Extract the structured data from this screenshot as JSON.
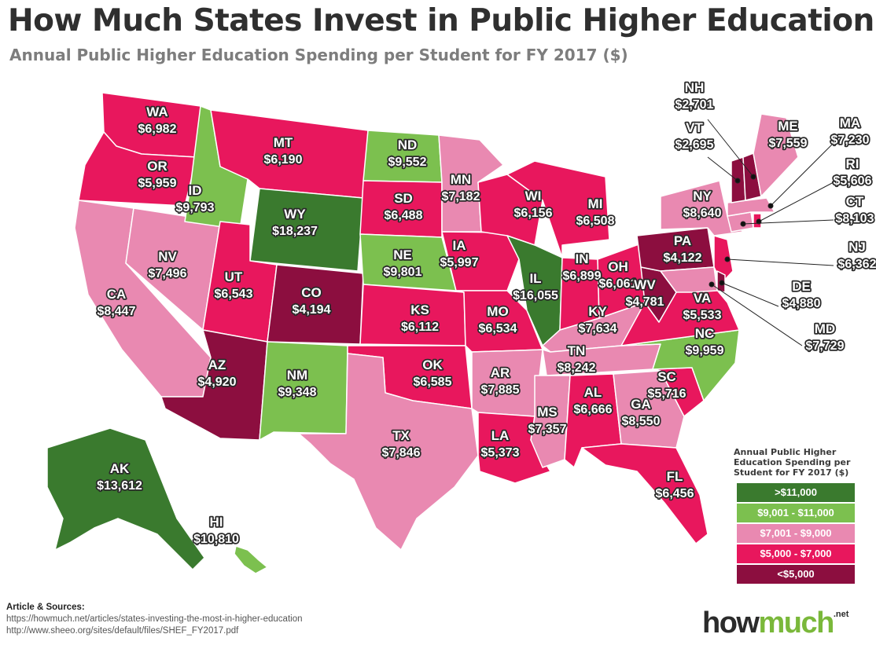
{
  "title": "How Much States Invest in Public Higher Education",
  "subtitle": "Annual Public Higher Education Spending per Student for FY 2017 ($)",
  "colors": {
    "gt11000": "#3a7a2e",
    "r9001_11000": "#7cc04f",
    "r7001_9000": "#e989b1",
    "r5000_7000": "#e8175d",
    "lt5000": "#8c0e3f"
  },
  "legend": {
    "title": "Annual Public Higher Education Spending per Student for FY 2017 ($)",
    "items": [
      {
        "label": ">$11,000",
        "color": "#3a7a2e"
      },
      {
        "label": "$9,001 - $11,000",
        "color": "#7cc04f"
      },
      {
        "label": "$7,001 - $9,000",
        "color": "#e989b1"
      },
      {
        "label": "$5,000 - $7,000",
        "color": "#e8175d"
      },
      {
        "label": "<$5,000",
        "color": "#8c0e3f"
      }
    ]
  },
  "states": [
    {
      "abbr": "WA",
      "value": "$6,982"
    },
    {
      "abbr": "OR",
      "value": "$5,959"
    },
    {
      "abbr": "CA",
      "value": "$8,447"
    },
    {
      "abbr": "NV",
      "value": "$7,496"
    },
    {
      "abbr": "ID",
      "value": "$9,793"
    },
    {
      "abbr": "MT",
      "value": "$6,190"
    },
    {
      "abbr": "WY",
      "value": "$18,237"
    },
    {
      "abbr": "UT",
      "value": "$6,543"
    },
    {
      "abbr": "AZ",
      "value": "$4,920"
    },
    {
      "abbr": "CO",
      "value": "$4,194"
    },
    {
      "abbr": "NM",
      "value": "$9,348"
    },
    {
      "abbr": "ND",
      "value": "$9,552"
    },
    {
      "abbr": "SD",
      "value": "$6,488"
    },
    {
      "abbr": "NE",
      "value": "$9,801"
    },
    {
      "abbr": "KS",
      "value": "$6,112"
    },
    {
      "abbr": "OK",
      "value": "$6,585"
    },
    {
      "abbr": "TX",
      "value": "$7,846"
    },
    {
      "abbr": "MN",
      "value": "$7,182"
    },
    {
      "abbr": "IA",
      "value": "$5,997"
    },
    {
      "abbr": "MO",
      "value": "$6,534"
    },
    {
      "abbr": "AR",
      "value": "$7,885"
    },
    {
      "abbr": "LA",
      "value": "$5,373"
    },
    {
      "abbr": "WI",
      "value": "$6,156"
    },
    {
      "abbr": "IL",
      "value": "$16,055"
    },
    {
      "abbr": "MI",
      "value": "$6,508"
    },
    {
      "abbr": "IN",
      "value": "$6,899"
    },
    {
      "abbr": "OH",
      "value": "$6,061"
    },
    {
      "abbr": "KY",
      "value": "$7,634"
    },
    {
      "abbr": "TN",
      "value": "$8,242"
    },
    {
      "abbr": "MS",
      "value": "$7,357"
    },
    {
      "abbr": "AL",
      "value": "$6,666"
    },
    {
      "abbr": "GA",
      "value": "$8,550"
    },
    {
      "abbr": "FL",
      "value": "$6,456"
    },
    {
      "abbr": "SC",
      "value": "$5,716"
    },
    {
      "abbr": "NC",
      "value": "$9,959"
    },
    {
      "abbr": "VA",
      "value": "$5,533"
    },
    {
      "abbr": "WV",
      "value": "$4,781"
    },
    {
      "abbr": "PA",
      "value": "$4,122"
    },
    {
      "abbr": "NY",
      "value": "$8,640"
    },
    {
      "abbr": "ME",
      "value": "$7,559"
    },
    {
      "abbr": "NH",
      "value": "$2,701"
    },
    {
      "abbr": "VT",
      "value": "$2,695"
    },
    {
      "abbr": "MA",
      "value": "$7,230"
    },
    {
      "abbr": "RI",
      "value": "$5,606"
    },
    {
      "abbr": "CT",
      "value": "$8,103"
    },
    {
      "abbr": "NJ",
      "value": "$6,362"
    },
    {
      "abbr": "DE",
      "value": "$4,880"
    },
    {
      "abbr": "MD",
      "value": "$7,729"
    },
    {
      "abbr": "AK",
      "value": "$13,612"
    },
    {
      "abbr": "HI",
      "value": "$10,810"
    }
  ],
  "sources": {
    "header": "Article & Sources:",
    "line1": "https://howmuch.net/articles/states-investing-the-most-in-higher-education",
    "line2": "http://www.sheeo.org/sites/default/files/SHEF_FY2017.pdf"
  },
  "logo": {
    "part1": "how",
    "part2": "much",
    "suffix": ".net"
  }
}
